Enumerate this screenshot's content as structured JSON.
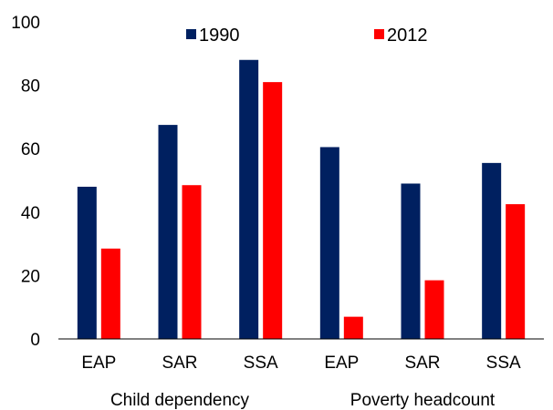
{
  "chart_data": {
    "type": "bar",
    "categories": [
      "EAP",
      "SAR",
      "SSA",
      "EAP",
      "SAR",
      "SSA"
    ],
    "groups": [
      {
        "label": "Child dependency",
        "categories": [
          "EAP",
          "SAR",
          "SSA"
        ]
      },
      {
        "label": "Poverty headcount",
        "categories": [
          "EAP",
          "SAR",
          "SSA"
        ]
      }
    ],
    "series": [
      {
        "name": "1990",
        "color": "#002060",
        "values": [
          48,
          67.5,
          88,
          60.5,
          49,
          55.5
        ]
      },
      {
        "name": "2012",
        "color": "#ff0000",
        "values": [
          28.5,
          48.5,
          81,
          7,
          18.5,
          42.5
        ]
      }
    ],
    "yticks": [
      "0",
      "20",
      "40",
      "60",
      "80",
      "100"
    ],
    "ylim": [
      0,
      100
    ],
    "grid": false,
    "legend": "top"
  }
}
